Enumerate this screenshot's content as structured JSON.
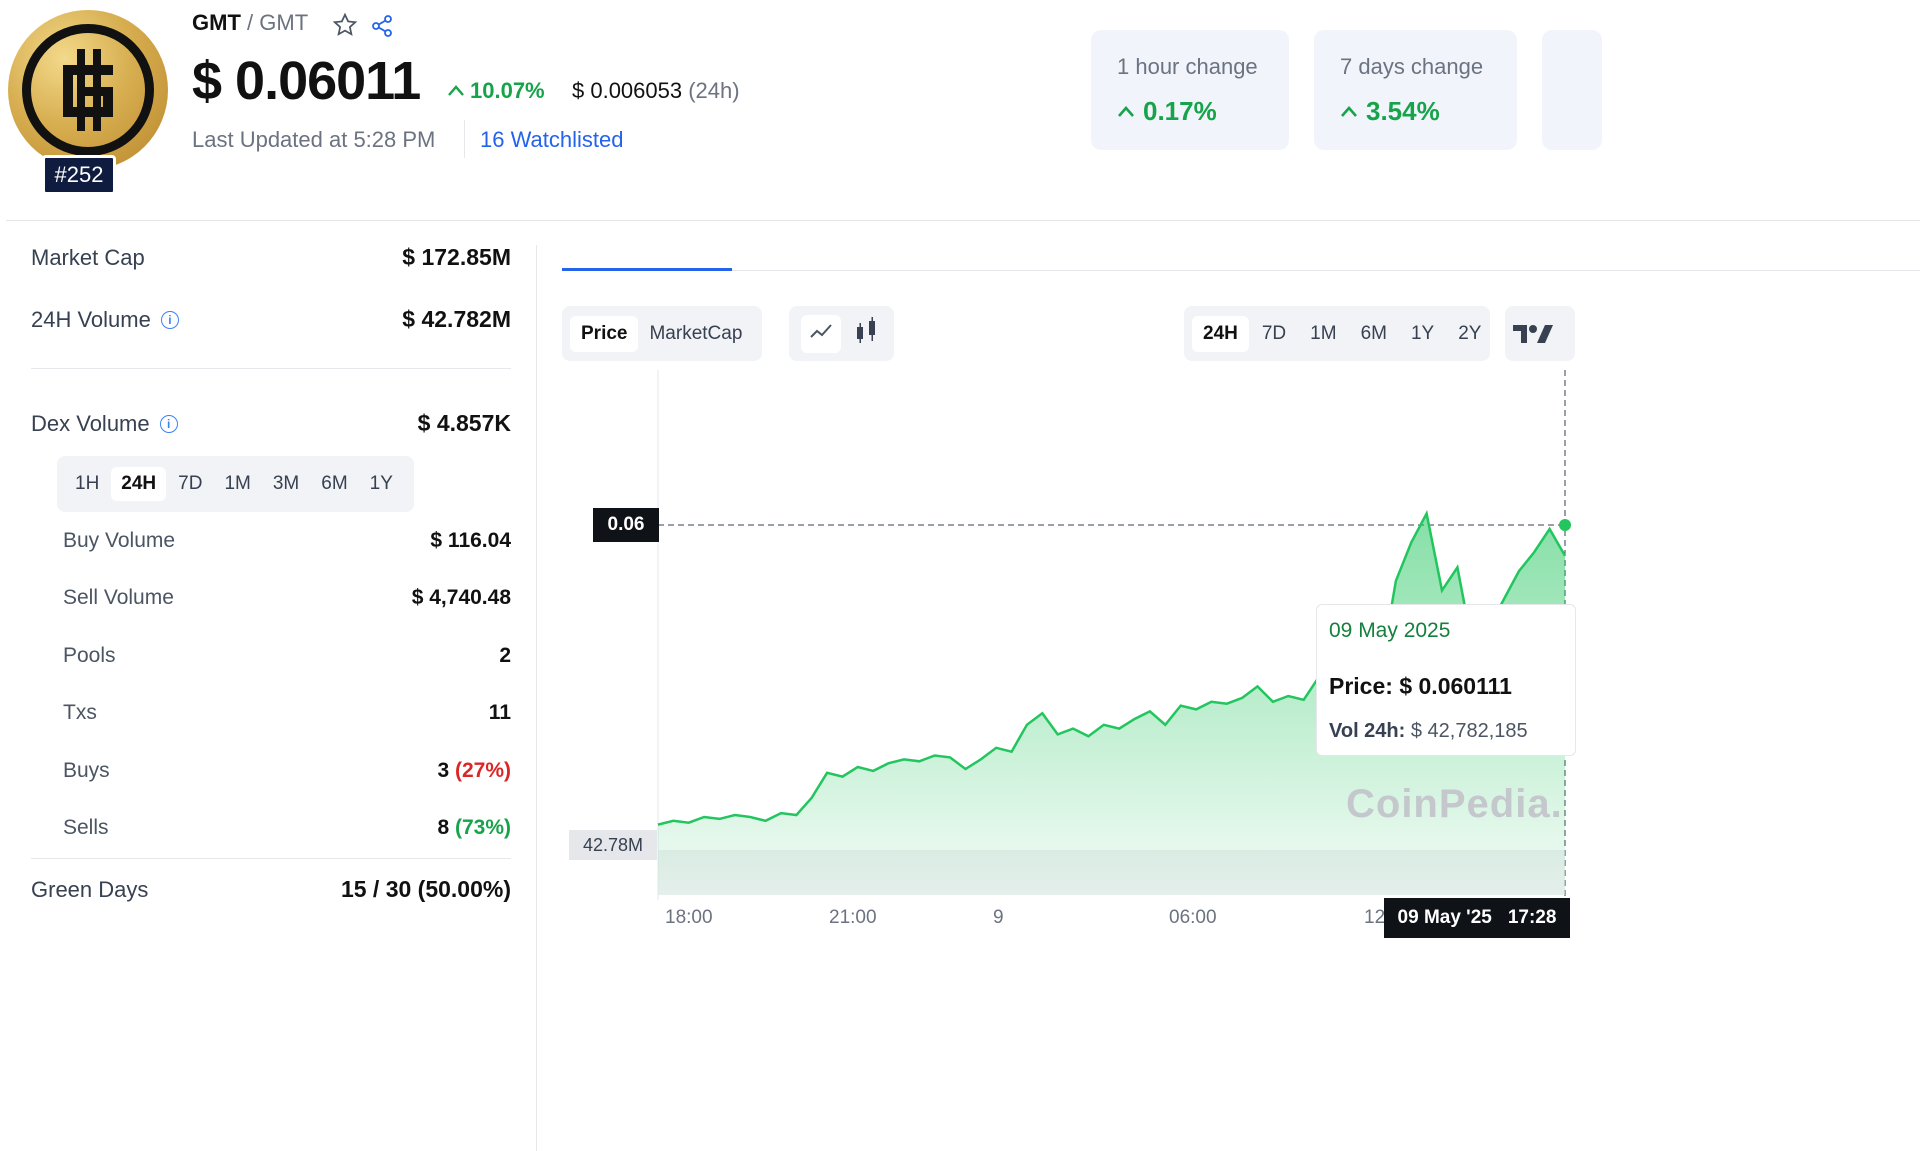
{
  "header": {
    "symbol": "GMT",
    "separator": "/",
    "symbol_sub": "GMT",
    "rank": "#252",
    "price": "$ 0.06011",
    "change_24h": "10.07%",
    "low_price": "$ 0.006053",
    "low_period": "(24h)",
    "last_updated": "Last Updated at 5:28 PM",
    "watchlisted": "16 Watchlisted"
  },
  "change_cards": [
    {
      "label": "1 hour change",
      "value": "0.17%"
    },
    {
      "label": "7 days change",
      "value": "3.54%"
    }
  ],
  "stats": {
    "market_cap_label": "Market Cap",
    "market_cap": "$ 172.85M",
    "volume_label": "24H Volume",
    "volume": "$ 42.782M",
    "dex_label": "Dex Volume",
    "dex": "$ 4.857K"
  },
  "dex_tabs": [
    "1H",
    "24H",
    "7D",
    "1M",
    "3M",
    "6M",
    "1Y"
  ],
  "dex_rows": {
    "buy_label": "Buy Volume",
    "buy": "$ 116.04",
    "sell_label": "Sell Volume",
    "sell": "$ 4,740.48",
    "pools_label": "Pools",
    "pools": "2",
    "txs_label": "Txs",
    "txs": "11",
    "buys_label": "Buys",
    "buys": "3",
    "buys_pct": "(27%)",
    "sells_label": "Sells",
    "sells": "8",
    "sells_pct": "(73%)"
  },
  "green_days": {
    "label": "Green Days",
    "value": "15 / 30 (50.00%)"
  },
  "chart_controls": {
    "price_tab": "Price",
    "marketcap_tab": "MarketCap",
    "ranges": [
      "24H",
      "7D",
      "1M",
      "6M",
      "1Y",
      "2Y"
    ],
    "active_range": "24H"
  },
  "chart": {
    "price_label": "0.06",
    "volume_label": "42.78M",
    "x_ticks": [
      "18:00",
      "21:00",
      "9",
      "06:00",
      "12"
    ],
    "cursor_date": "09 May '25",
    "cursor_time": "17:28",
    "watermark": "CoinPedia.",
    "line_color": "#22c55e"
  },
  "tooltip": {
    "date": "09 May 2025",
    "price_label": "Price:",
    "price": "$ 0.060111",
    "vol_label": "Vol 24h:",
    "vol": "$ 42,782,185"
  }
}
